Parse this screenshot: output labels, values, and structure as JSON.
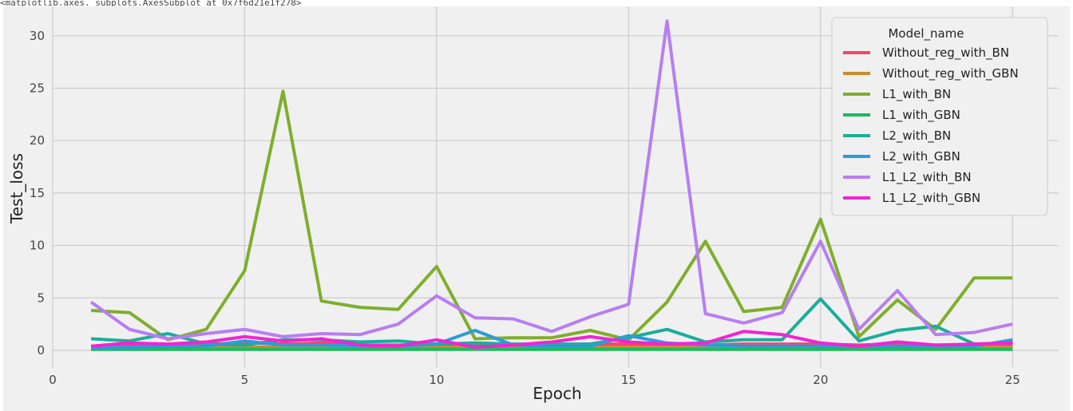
{
  "output_header": "<matplotlib.axes._subplots.AxesSubplot at 0x7f6d21e1f278>",
  "style": {
    "figure_bg": "#f0f0f0",
    "axes_bg": "#f0f0f0",
    "grid_color": "#cbcbcb"
  },
  "chart_data": {
    "type": "line",
    "title": "",
    "xlabel": "Epoch",
    "ylabel": "Test_loss",
    "xlim": [
      0,
      26.2
    ],
    "ylim": [
      -1.6,
      32.8
    ],
    "xticks": [
      0,
      5,
      10,
      15,
      20,
      25
    ],
    "yticks": [
      0,
      5,
      10,
      15,
      20,
      25,
      30
    ],
    "grid": true,
    "legend": {
      "title": "Model_name",
      "placement": "top-right"
    },
    "x": [
      1,
      2,
      3,
      4,
      5,
      6,
      7,
      8,
      9,
      10,
      11,
      12,
      13,
      14,
      15,
      16,
      17,
      18,
      19,
      20,
      21,
      22,
      23,
      24,
      25
    ],
    "series": [
      {
        "name": "Without_reg_with_BN",
        "color": "#f7456a",
        "values": [
          0.4,
          0.5,
          0.5,
          0.6,
          0.7,
          0.6,
          0.7,
          0.5,
          0.5,
          0.6,
          0.5,
          0.5,
          0.5,
          0.6,
          0.6,
          0.5,
          0.5,
          0.6,
          0.6,
          0.6,
          0.5,
          0.6,
          0.5,
          0.5,
          0.6
        ]
      },
      {
        "name": "Without_reg_with_GBN",
        "color": "#cc8a2e",
        "values": [
          0.3,
          0.3,
          0.3,
          0.3,
          0.3,
          0.3,
          0.3,
          0.3,
          0.3,
          0.3,
          0.3,
          0.3,
          0.3,
          0.3,
          0.3,
          0.3,
          0.3,
          0.3,
          0.3,
          0.3,
          0.3,
          0.3,
          0.3,
          0.3,
          0.3
        ]
      },
      {
        "name": "L1_with_BN",
        "color": "#7fae2c",
        "values": [
          3.8,
          3.6,
          1.0,
          2.0,
          7.6,
          24.7,
          4.7,
          4.1,
          3.9,
          8.0,
          1.1,
          1.2,
          1.2,
          1.9,
          1.0,
          4.6,
          10.4,
          3.7,
          4.1,
          12.5,
          1.3,
          4.8,
          2.0,
          6.9,
          6.9
        ]
      },
      {
        "name": "L1_with_GBN",
        "color": "#1cbb5c",
        "values": [
          0.1,
          0.1,
          0.1,
          0.1,
          0.1,
          0.1,
          0.1,
          0.1,
          0.1,
          0.1,
          0.1,
          0.1,
          0.1,
          0.1,
          0.1,
          0.1,
          0.1,
          0.1,
          0.1,
          0.1,
          0.1,
          0.1,
          0.1,
          0.1,
          0.1
        ]
      },
      {
        "name": "L2_with_BN",
        "color": "#1aad9a",
        "values": [
          1.1,
          0.9,
          1.6,
          0.6,
          0.5,
          1.0,
          1.0,
          0.8,
          0.9,
          0.6,
          0.7,
          0.6,
          0.6,
          0.6,
          1.2,
          2.0,
          0.8,
          1.0,
          1.0,
          4.9,
          0.9,
          1.9,
          2.3,
          0.6,
          0.7
        ]
      },
      {
        "name": "L2_with_GBN",
        "color": "#2e9bd6",
        "values": [
          0.2,
          0.3,
          0.4,
          0.4,
          0.9,
          0.5,
          0.5,
          0.4,
          0.4,
          0.6,
          1.9,
          0.5,
          0.4,
          0.4,
          1.4,
          0.7,
          0.5,
          0.4,
          0.4,
          0.4,
          0.4,
          0.4,
          0.4,
          0.4,
          1.0
        ]
      },
      {
        "name": "L1_L2_with_BN",
        "color": "#b77ef3",
        "values": [
          4.6,
          2.0,
          1.1,
          1.6,
          2.0,
          1.3,
          1.6,
          1.5,
          2.5,
          5.2,
          3.1,
          3.0,
          1.8,
          3.2,
          4.4,
          31.4,
          3.5,
          2.6,
          3.6,
          10.4,
          2.0,
          5.7,
          1.5,
          1.7,
          2.5
        ]
      },
      {
        "name": "L1_L2_with_GBN",
        "color": "#f224d2",
        "values": [
          0.4,
          0.7,
          0.6,
          0.8,
          1.3,
          0.9,
          1.1,
          0.5,
          0.4,
          1.0,
          0.3,
          0.5,
          0.8,
          1.3,
          0.8,
          0.6,
          0.7,
          1.8,
          1.5,
          0.7,
          0.4,
          0.8,
          0.5,
          0.6,
          0.7
        ]
      }
    ]
  }
}
